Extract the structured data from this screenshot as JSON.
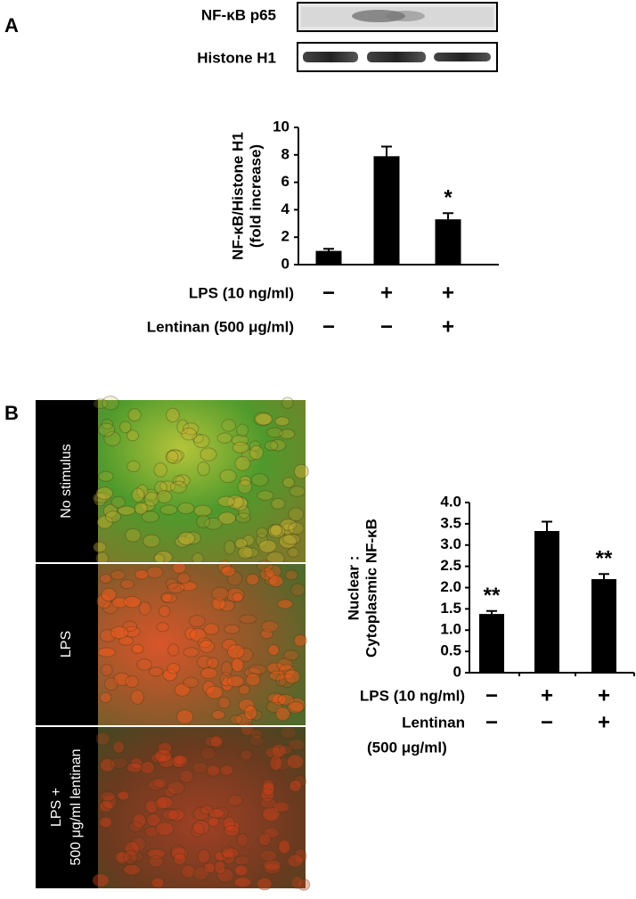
{
  "panels": [
    "A",
    "B"
  ],
  "blot": {
    "labels": [
      "NF-κB p65",
      "Histone H1"
    ]
  },
  "micrographs": {
    "labels": [
      [
        "No stimulus"
      ],
      [
        "LPS"
      ],
      [
        "LPS +",
        "500 μg/ml lentinan"
      ]
    ]
  },
  "chart_data": [
    {
      "type": "bar",
      "y_label": [
        "NF-κB/Histone H1",
        "(fold increase)"
      ],
      "values": [
        1.0,
        7.9,
        3.3
      ],
      "errors": [
        0.15,
        0.7,
        0.45
      ],
      "color": "#000000",
      "ylim": [
        0,
        10
      ],
      "yticks": [
        0,
        2,
        4,
        6,
        8,
        10
      ],
      "annotations": [
        {
          "index": 2,
          "text": "*"
        }
      ],
      "conditions": [
        {
          "label": [
            "LPS (10 ng/ml)"
          ],
          "signs": [
            "−",
            "+",
            "+"
          ]
        },
        {
          "label": [
            "Lentinan (500 μg/ml)"
          ],
          "signs": [
            "−",
            "−",
            "+"
          ]
        }
      ]
    },
    {
      "type": "bar",
      "y_label": [
        "Nuclear :",
        "Cytoplasmic NF-κB"
      ],
      "values": [
        1.38,
        3.33,
        2.2
      ],
      "errors": [
        0.07,
        0.22,
        0.12
      ],
      "color": "#000000",
      "ylim": [
        0,
        4
      ],
      "yticks": [
        0,
        0.5,
        {
          "value": 1,
          "label": "1.0"
        },
        1.5,
        {
          "value": 2,
          "label": "2.0"
        },
        2.5,
        {
          "value": 3,
          "label": "3.0"
        },
        3.5,
        {
          "value": 4,
          "label": "4.0"
        }
      ],
      "annotations": [
        {
          "index": 0,
          "text": "**"
        },
        {
          "index": 2,
          "text": "**"
        }
      ],
      "conditions": [
        {
          "label": [
            "LPS (10 ng/ml)"
          ],
          "signs": [
            "−",
            "+",
            "+"
          ]
        },
        {
          "label": [
            "Lentinan",
            "(500 μg/ml)"
          ],
          "signs": [
            "−",
            "−",
            "+"
          ]
        }
      ]
    }
  ]
}
